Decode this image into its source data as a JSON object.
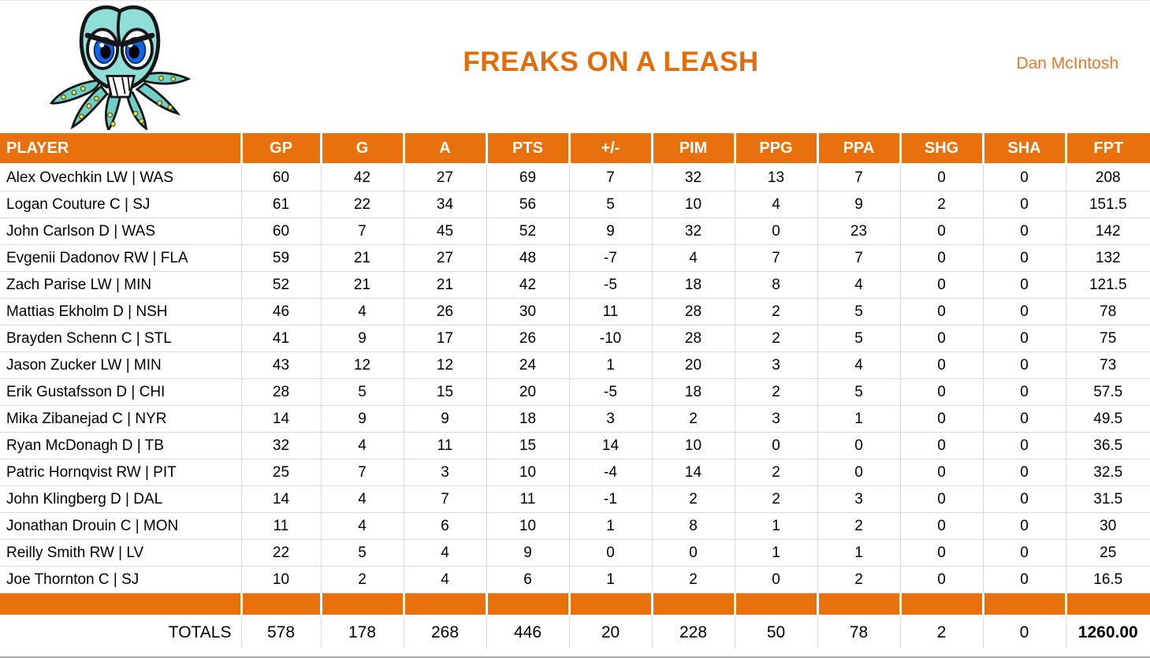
{
  "page": {
    "title": "FREAKS ON A LEASH",
    "owner": "Dan McIntosh",
    "logo": "octopus-mascot"
  },
  "colors": {
    "accent_orange": "#E8700D",
    "title_orange": "#E36C0A",
    "gridline_gray": "#D9D9D9"
  },
  "table": {
    "columns": [
      "PLAYER",
      "GP",
      "G",
      "A",
      "PTS",
      "+/-",
      "PIM",
      "PPG",
      "PPA",
      "SHG",
      "SHA",
      "FPT"
    ],
    "rows": [
      [
        "Alex Ovechkin LW | WAS",
        "60",
        "42",
        "27",
        "69",
        "7",
        "32",
        "13",
        "7",
        "0",
        "0",
        "208"
      ],
      [
        "Logan Couture C | SJ",
        "61",
        "22",
        "34",
        "56",
        "5",
        "10",
        "4",
        "9",
        "2",
        "0",
        "151.5"
      ],
      [
        "John Carlson D | WAS",
        "60",
        "7",
        "45",
        "52",
        "9",
        "32",
        "0",
        "23",
        "0",
        "0",
        "142"
      ],
      [
        "Evgenii Dadonov RW | FLA",
        "59",
        "21",
        "27",
        "48",
        "-7",
        "4",
        "7",
        "7",
        "0",
        "0",
        "132"
      ],
      [
        "Zach Parise LW | MIN",
        "52",
        "21",
        "21",
        "42",
        "-5",
        "18",
        "8",
        "4",
        "0",
        "0",
        "121.5"
      ],
      [
        "Mattias Ekholm D | NSH",
        "46",
        "4",
        "26",
        "30",
        "11",
        "28",
        "2",
        "5",
        "0",
        "0",
        "78"
      ],
      [
        "Brayden Schenn C | STL",
        "41",
        "9",
        "17",
        "26",
        "-10",
        "28",
        "2",
        "5",
        "0",
        "0",
        "75"
      ],
      [
        "Jason Zucker LW | MIN",
        "43",
        "12",
        "12",
        "24",
        "1",
        "20",
        "3",
        "4",
        "0",
        "0",
        "73"
      ],
      [
        "Erik Gustafsson D | CHI",
        "28",
        "5",
        "15",
        "20",
        "-5",
        "18",
        "2",
        "5",
        "0",
        "0",
        "57.5"
      ],
      [
        "Mika Zibanejad C | NYR",
        "14",
        "9",
        "9",
        "18",
        "3",
        "2",
        "3",
        "1",
        "0",
        "0",
        "49.5"
      ],
      [
        "Ryan McDonagh D | TB",
        "32",
        "4",
        "11",
        "15",
        "14",
        "10",
        "0",
        "0",
        "0",
        "0",
        "36.5"
      ],
      [
        "Patric Hornqvist RW | PIT",
        "25",
        "7",
        "3",
        "10",
        "-4",
        "14",
        "2",
        "0",
        "0",
        "0",
        "32.5"
      ],
      [
        "John Klingberg D | DAL",
        "14",
        "4",
        "7",
        "11",
        "-1",
        "2",
        "2",
        "3",
        "0",
        "0",
        "31.5"
      ],
      [
        "Jonathan Drouin C | MON",
        "11",
        "4",
        "6",
        "10",
        "1",
        "8",
        "1",
        "2",
        "0",
        "0",
        "30"
      ],
      [
        "Reilly Smith RW | LV",
        "22",
        "5",
        "4",
        "9",
        "0",
        "0",
        "1",
        "1",
        "0",
        "0",
        "25"
      ],
      [
        "Joe Thornton C | SJ",
        "10",
        "2",
        "4",
        "6",
        "1",
        "2",
        "0",
        "2",
        "0",
        "0",
        "16.5"
      ]
    ],
    "totals": [
      "TOTALS",
      "578",
      "178",
      "268",
      "446",
      "20",
      "228",
      "50",
      "78",
      "2",
      "0",
      "1260.00"
    ]
  }
}
